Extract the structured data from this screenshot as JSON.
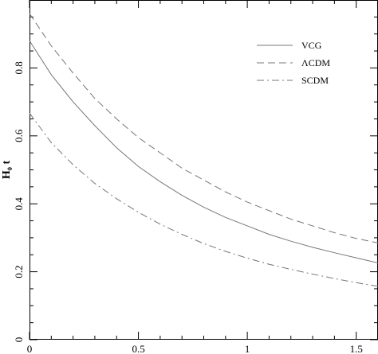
{
  "chart_data": {
    "type": "line",
    "title": "",
    "xlabel": "",
    "ylabel": "H₀ t",
    "xlim": [
      0,
      1.6
    ],
    "ylim": [
      0,
      1.0
    ],
    "xticks": [
      0,
      0.5,
      1,
      1.5
    ],
    "xtick_labels": [
      "0",
      "0.5",
      "1",
      "1.5"
    ],
    "yticks": [
      0,
      0.2,
      0.4,
      0.6,
      0.8
    ],
    "ytick_labels": [
      "0",
      "0.2",
      "0.4",
      "0.6",
      "0.8"
    ],
    "grid": false,
    "legend_position": "top-right",
    "series": [
      {
        "name": "VCG",
        "style": "solid",
        "color": "#777777",
        "x": [
          0,
          0.1,
          0.2,
          0.3,
          0.4,
          0.5,
          0.6,
          0.7,
          0.8,
          0.9,
          1.0,
          1.1,
          1.2,
          1.3,
          1.4,
          1.5,
          1.6
        ],
        "y": [
          0.88,
          0.78,
          0.7,
          0.63,
          0.565,
          0.51,
          0.465,
          0.425,
          0.39,
          0.36,
          0.335,
          0.31,
          0.29,
          0.272,
          0.256,
          0.241,
          0.226
        ]
      },
      {
        "name": "ΛCDM",
        "style": "dashed",
        "color": "#777777",
        "x": [
          0,
          0.1,
          0.2,
          0.3,
          0.4,
          0.5,
          0.6,
          0.7,
          0.8,
          0.9,
          1.0,
          1.1,
          1.2,
          1.3,
          1.4,
          1.5,
          1.6
        ],
        "y": [
          0.96,
          0.865,
          0.785,
          0.71,
          0.65,
          0.595,
          0.55,
          0.505,
          0.47,
          0.435,
          0.405,
          0.38,
          0.355,
          0.335,
          0.315,
          0.298,
          0.285
        ]
      },
      {
        "name": "SCDM",
        "style": "dashdot",
        "color": "#777777",
        "x": [
          0,
          0.1,
          0.2,
          0.3,
          0.4,
          0.5,
          0.6,
          0.7,
          0.8,
          0.9,
          1.0,
          1.1,
          1.2,
          1.3,
          1.4,
          1.5,
          1.6
        ],
        "y": [
          0.667,
          0.58,
          0.515,
          0.46,
          0.415,
          0.375,
          0.34,
          0.31,
          0.283,
          0.26,
          0.24,
          0.222,
          0.207,
          0.193,
          0.18,
          0.168,
          0.157
        ]
      }
    ]
  }
}
